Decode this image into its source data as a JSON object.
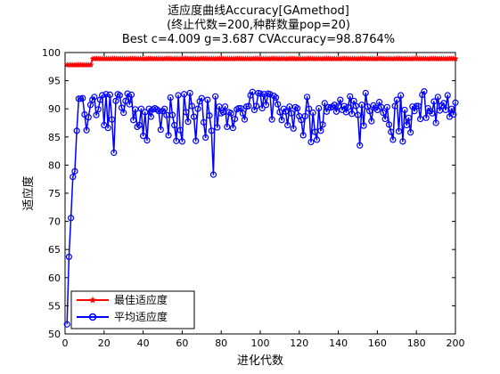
{
  "chart_data": {
    "type": "line",
    "title_lines": [
      "适应度曲线Accuracy[GAmethod]",
      "(终止代数=200,种群数量pop=20)",
      "Best c=4.009 g=3.687 CVAccuracy=98.8764%"
    ],
    "xlabel": "进化代数",
    "ylabel": "适应度",
    "xlim": [
      0,
      200
    ],
    "ylim": [
      50,
      100
    ],
    "xticks": [
      0,
      20,
      40,
      60,
      80,
      100,
      120,
      140,
      160,
      180,
      200
    ],
    "yticks": [
      50,
      55,
      60,
      65,
      70,
      75,
      80,
      85,
      90,
      95,
      100
    ],
    "grid": false,
    "legend_position": "bottom-left",
    "series": [
      {
        "name": "最佳适应度",
        "color": "#ff0000",
        "marker": "star",
        "x_start": 1,
        "x_end": 200,
        "values": [
          97.8,
          97.8,
          97.8,
          97.8,
          97.8,
          97.8,
          97.8,
          97.8,
          97.8,
          97.8,
          97.8,
          97.8,
          97.8,
          98.9,
          98.9,
          98.9,
          98.9,
          98.9,
          98.9,
          98.9,
          98.9,
          98.9,
          98.9,
          98.9,
          98.9,
          98.9,
          98.9,
          98.9,
          98.9,
          98.9,
          98.9,
          98.9,
          98.9,
          98.9,
          98.9,
          98.9,
          98.9,
          98.9,
          98.9,
          98.9,
          98.9,
          98.9,
          98.9,
          98.9,
          98.9,
          98.9,
          98.9,
          98.9,
          98.9,
          98.9,
          98.9,
          98.9,
          98.9,
          98.9,
          98.9,
          98.9,
          98.9,
          98.9,
          98.9,
          98.9,
          98.9,
          98.9,
          98.9,
          98.9,
          98.9,
          98.9,
          98.9,
          98.9,
          98.9,
          98.9,
          98.9,
          98.9,
          98.9,
          98.9,
          98.9,
          98.9,
          98.9,
          98.9,
          98.9,
          98.9,
          98.9,
          98.9,
          98.9,
          98.9,
          98.9,
          98.9,
          98.9,
          98.9,
          98.9,
          98.9,
          98.9,
          98.9,
          98.9,
          98.9,
          98.9,
          98.9,
          98.9,
          98.9,
          98.9,
          98.9,
          98.9,
          98.9,
          98.9,
          98.9,
          98.9,
          98.9,
          98.9,
          98.9,
          98.9,
          98.9,
          98.9,
          98.9,
          98.9,
          98.9,
          98.9,
          98.9,
          98.9,
          98.9,
          98.9,
          98.9,
          98.9,
          98.9,
          98.9,
          98.9,
          98.9,
          98.9,
          98.9,
          98.9,
          98.9,
          98.9,
          98.9,
          98.9,
          98.9,
          98.9,
          98.9,
          98.9,
          98.9,
          98.9,
          98.9,
          98.9,
          98.9,
          98.9,
          98.9,
          98.9,
          98.9,
          98.9,
          98.9,
          98.9,
          98.9,
          98.9,
          98.9,
          98.9,
          98.9,
          98.9,
          98.9,
          98.9,
          98.9,
          98.9,
          98.9,
          98.9,
          98.9,
          98.9,
          98.9,
          98.9,
          98.9,
          98.9,
          98.9,
          98.9,
          98.9,
          98.9,
          98.9,
          98.9,
          98.9,
          98.9,
          98.9,
          98.9,
          98.9,
          98.9,
          98.9,
          98.9,
          98.9,
          98.9,
          98.9,
          98.9,
          98.9,
          98.9,
          98.9,
          98.9,
          98.9,
          98.9,
          98.9,
          98.9,
          98.9,
          98.9,
          98.9,
          98.9,
          98.9
        ]
      },
      {
        "name": "平均适应度",
        "color": "#0000ff",
        "marker": "circle",
        "x_start": 1,
        "x_end": 200,
        "values": [
          51.7,
          63.7,
          70.6,
          77.9,
          78.9,
          86.1,
          91.8,
          91.8,
          91.9,
          89.0,
          86.2,
          88.5,
          90.7,
          91.6,
          92.1,
          88.9,
          89.9,
          91.6,
          92.4,
          87.1,
          92.6,
          86.6,
          92.5,
          88.1,
          82.2,
          91.4,
          92.6,
          92.4,
          90.2,
          89.3,
          91.4,
          92.7,
          90.8,
          92.5,
          88.0,
          89.9,
          86.8,
          87.1,
          90.0,
          85.2,
          89.4,
          84.4,
          90.0,
          88.6,
          89.9,
          90.1,
          89.9,
          89.6,
          86.3,
          89.6,
          90.0,
          88.9,
          85.3,
          92.0,
          88.9,
          87.1,
          84.3,
          92.4,
          86.2,
          84.2,
          92.6,
          89.4,
          87.7,
          92.8,
          90.5,
          88.6,
          84.3,
          90.0,
          91.3,
          91.9,
          87.6,
          84.9,
          91.6,
          88.8,
          86.1,
          78.3,
          92.2,
          86.7,
          90.4,
          89.2,
          89.4,
          90.4,
          86.8,
          89.4,
          89.2,
          86.6,
          88.2,
          89.9,
          90.1,
          90.1,
          89.2,
          88.1,
          90.4,
          90.5,
          92.4,
          93.0,
          89.8,
          90.5,
          92.8,
          92.7,
          90.1,
          92.6,
          90.7,
          92.7,
          92.6,
          88.1,
          92.3,
          92.0,
          90.8,
          89.4,
          88.0,
          90.0,
          89.5,
          87.1,
          90.4,
          89.2,
          86.5,
          90.3,
          90.1,
          88.7,
          88.0,
          85.3,
          88.7,
          92.1,
          90.0,
          84.1,
          89.3,
          85.9,
          84.5,
          90.1,
          86.1,
          87.2,
          91.0,
          89.5,
          90.3,
          90.2,
          90.4,
          90.7,
          89.5,
          90.5,
          91.6,
          89.8,
          90.5,
          89.4,
          90.3,
          92.2,
          89.1,
          91.4,
          90.5,
          88.9,
          83.5,
          90.7,
          87.0,
          92.8,
          90.4,
          89.6,
          87.8,
          90.6,
          90.2,
          89.8,
          91.2,
          90.3,
          89.3,
          88.2,
          90.3,
          87.2,
          85.9,
          84.5,
          90.5,
          91.6,
          86.0,
          92.4,
          84.2,
          89.8,
          87.1,
          88.4,
          85.8,
          90.4,
          89.6,
          90.5,
          90.5,
          88.2,
          92.5,
          93.1,
          88.4,
          90.1,
          89.6,
          89.2,
          91.3,
          87.5,
          92.1,
          89.7,
          90.6,
          91.0,
          89.8,
          92.4,
          88.6,
          90.0,
          89.0,
          91.1
        ]
      }
    ]
  }
}
